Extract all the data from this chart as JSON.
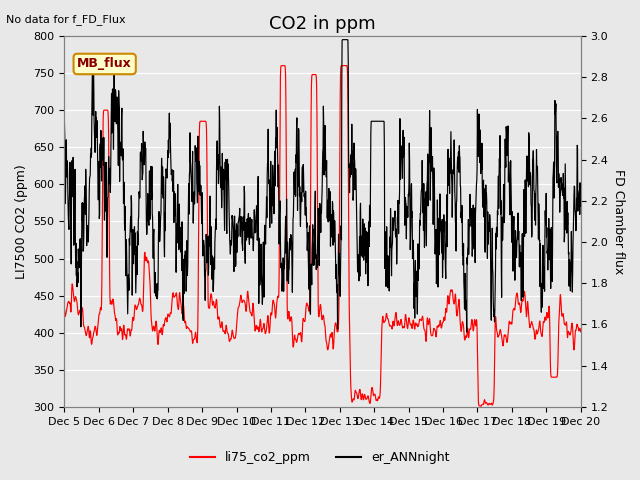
{
  "title": "CO2 in ppm",
  "top_left_text": "No data for f_FD_Flux",
  "ylabel_left": "LI7500 CO2 (ppm)",
  "ylabel_right": "FD Chamber flux",
  "ylim_left": [
    300,
    800
  ],
  "ylim_right": [
    1.2,
    3.0
  ],
  "xtick_labels": [
    "Dec 5",
    "Dec 6",
    "Dec 7",
    "Dec 8",
    "Dec 9",
    "Dec 10",
    "Dec 11",
    "Dec 12",
    "Dec 13",
    "Dec 14",
    "Dec 15",
    "Dec 16",
    "Dec 17",
    "Dec 18",
    "Dec 19",
    "Dec 20"
  ],
  "yticks_left": [
    300,
    350,
    400,
    450,
    500,
    550,
    600,
    650,
    700,
    750,
    800
  ],
  "yticks_right": [
    1.2,
    1.4,
    1.6,
    1.8,
    2.0,
    2.2,
    2.4,
    2.6,
    2.8,
    3.0
  ],
  "legend_labels": [
    "li75_co2_ppm",
    "er_ANNnight"
  ],
  "legend_colors": [
    "red",
    "black"
  ],
  "box_label": "MB_flux",
  "box_color": "#ffffcc",
  "box_border_color": "#cc8800",
  "background_color": "#e8e8e8",
  "grid_color": "white",
  "title_fontsize": 13,
  "label_fontsize": 9,
  "tick_fontsize": 8
}
